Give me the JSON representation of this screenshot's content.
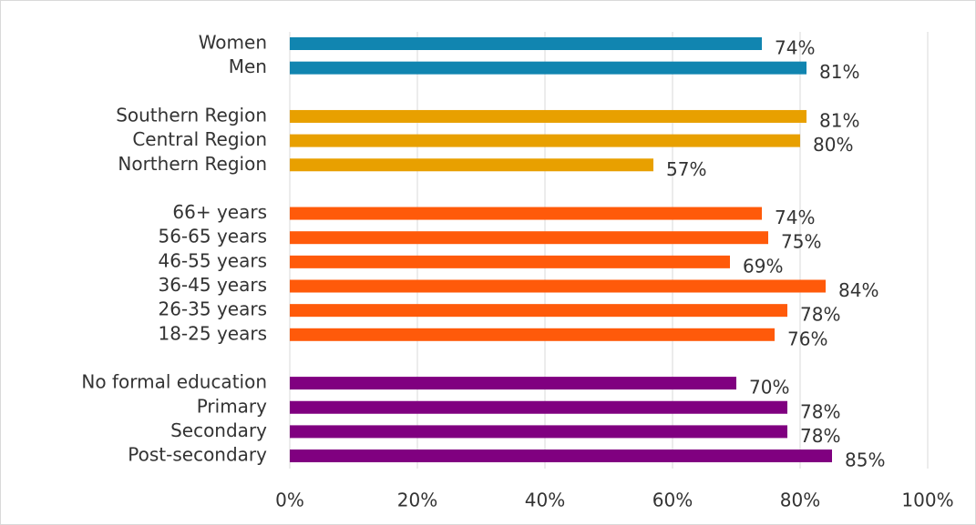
{
  "chart_data": {
    "type": "bar",
    "orientation": "horizontal",
    "categories": [
      "Women",
      "Men",
      null,
      "Southern Region",
      "Central Region",
      "Northern Region",
      null,
      "66+ years",
      "56-65 years",
      "46-55 years",
      "36-45 years",
      "26-35 years",
      "18-25 years",
      null,
      "No formal education",
      "Primary",
      "Secondary",
      "Post-secondary"
    ],
    "values": [
      74,
      81,
      null,
      81,
      80,
      57,
      null,
      74,
      75,
      69,
      84,
      78,
      76,
      null,
      70,
      78,
      78,
      85
    ],
    "value_labels": [
      "74%",
      "81%",
      null,
      "81%",
      "80%",
      "57%",
      null,
      "74%",
      "75%",
      "69%",
      "84%",
      "78%",
      "76%",
      null,
      "70%",
      "78%",
      "78%",
      "85%"
    ],
    "colors": [
      "#1185b0",
      "#1185b0",
      null,
      "#e8a000",
      "#e8a000",
      "#e8a000",
      null,
      "#ff5a0a",
      "#ff5a0a",
      "#ff5a0a",
      "#ff5a0a",
      "#ff5a0a",
      "#ff5a0a",
      null,
      "#800080",
      "#800080",
      "#800080",
      "#800080"
    ],
    "xlim": [
      0,
      100
    ],
    "xticks": [
      {
        "value": 0,
        "label": "0%"
      },
      {
        "value": 20,
        "label": "20%"
      },
      {
        "value": 40,
        "label": "40%"
      },
      {
        "value": 60,
        "label": "60%"
      },
      {
        "value": 80,
        "label": "80%"
      },
      {
        "value": 100,
        "label": "100%"
      }
    ],
    "grid": true
  }
}
